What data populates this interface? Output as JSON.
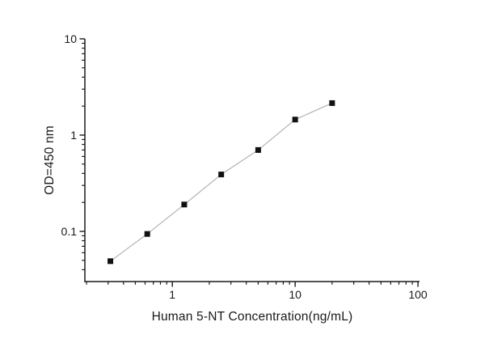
{
  "chart_data": {
    "type": "line",
    "title": "",
    "xlabel": "Human 5-NT Concentration(ng/mL)",
    "ylabel": "OD=450 nm",
    "xscale": "log",
    "yscale": "log",
    "xlim": [
      0.194,
      103
    ],
    "ylim": [
      0.0301,
      10
    ],
    "x": [
      0.313,
      0.625,
      1.25,
      2.5,
      5,
      10,
      20
    ],
    "y": [
      0.049,
      0.094,
      0.19,
      0.39,
      0.7,
      1.45,
      2.15
    ],
    "x_ticks": [
      {
        "value": 1,
        "label": "1"
      },
      {
        "value": 10,
        "label": "10"
      },
      {
        "value": 100,
        "label": "100"
      }
    ],
    "y_ticks": [
      {
        "value": 0.1,
        "label": "0.1"
      },
      {
        "value": 1,
        "label": "1"
      },
      {
        "value": 10,
        "label": "10"
      }
    ],
    "grid": false,
    "legend": "none",
    "marker": "filled-square",
    "colors": {
      "background": "#ffffff",
      "axis": "#1a1a1a",
      "text": "#1a1a1a",
      "line": "#b3b3b3",
      "marker": "#111111"
    }
  }
}
